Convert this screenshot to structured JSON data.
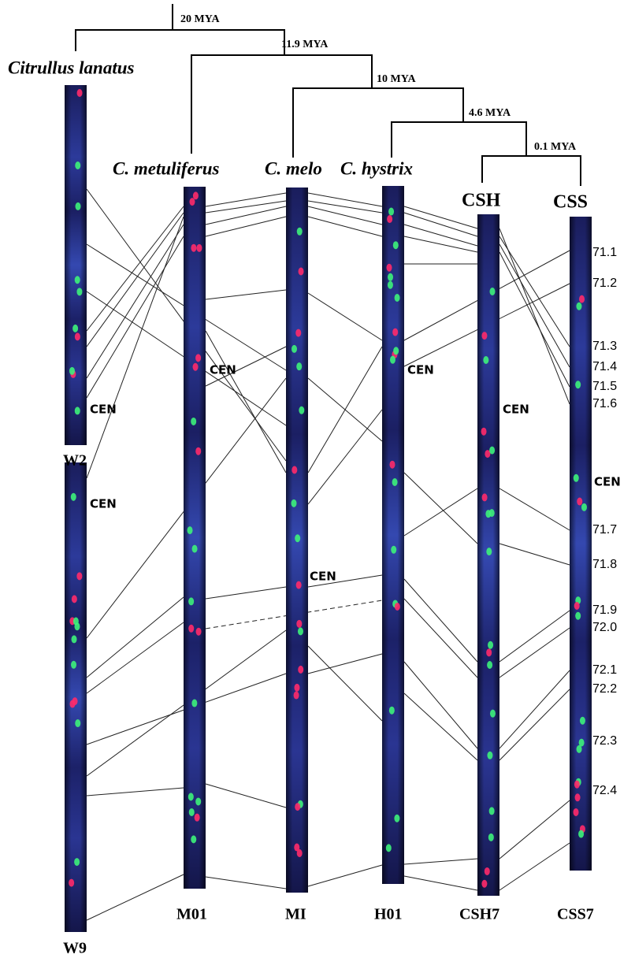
{
  "tree": {
    "nodes": [
      "20 MYA",
      "11.9 MYA",
      "10 MYA",
      "4.6 MYA",
      "0.1 MYA"
    ]
  },
  "species": [
    "Citrullus lanatus",
    "C. metuliferus",
    "C. melo",
    "C. hystrix",
    "CSH",
    "CSS"
  ],
  "chromosomes": [
    {
      "label": "W2",
      "cen": "CEN"
    },
    {
      "label": "W9",
      "cen": "CEN"
    },
    {
      "label": "M01",
      "cen": "CEN"
    },
    {
      "label": "MI",
      "cen": "CEN"
    },
    {
      "label": "H01",
      "cen": "CEN"
    },
    {
      "label": "CSH7",
      "cen": "CEN"
    },
    {
      "label": "CSS7",
      "cen": "CEN"
    }
  ],
  "markers": [
    "71.1",
    "71.2",
    "71.3",
    "71.4",
    "71.5",
    "71.6",
    "71.7",
    "71.8",
    "71.9",
    "72.0",
    "72.1",
    "72.2",
    "72.3",
    "72.4"
  ]
}
